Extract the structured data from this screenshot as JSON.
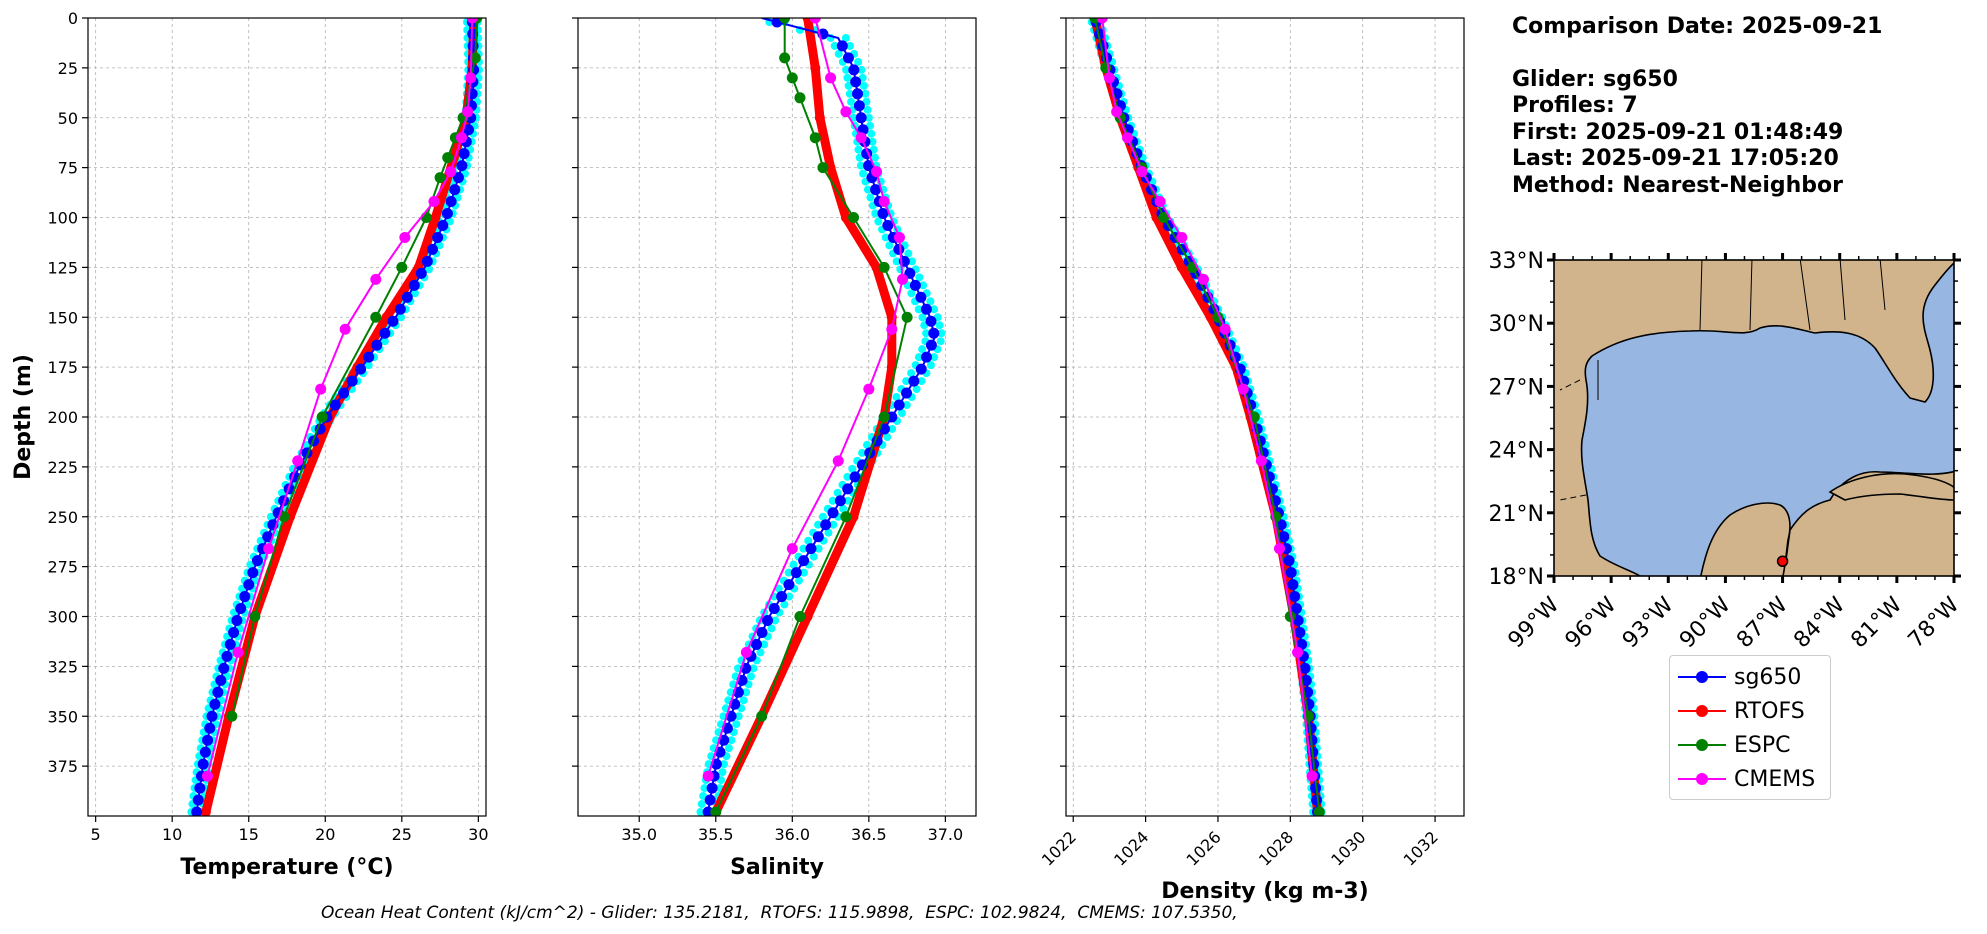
{
  "info": {
    "comparison_date": "Comparison Date: 2025-09-21",
    "glider": "Glider: sg650",
    "profiles": "Profiles: 7",
    "first": "First: 2025-09-21 01:48:49",
    "last": "Last: 2025-09-21 17:05:20",
    "method": "Method: Nearest-Neighbor"
  },
  "footer": "Ocean Heat Content (kJ/cm^2) - Glider: 135.2181,  RTOFS: 115.9898,  ESPC: 102.9824,  CMEMS: 107.5350,",
  "colors": {
    "sg650": "#0000ff",
    "RTOFS": "#ff0000",
    "ESPC": "#008000",
    "CMEMS": "#ff00ff",
    "glider_scatter": "#00ffff",
    "land": "#d2b48c",
    "ocean": "#97b6e1"
  },
  "legend": [
    {
      "name": "sg650",
      "color": "#0000ff"
    },
    {
      "name": "RTOFS",
      "color": "#ff0000"
    },
    {
      "name": "ESPC",
      "color": "#008000"
    },
    {
      "name": "CMEMS",
      "color": "#ff00ff"
    }
  ],
  "chart_data": [
    {
      "type": "line",
      "xlabel": "Temperature (°C)",
      "ylabel": "Depth (m)",
      "xlim": [
        4.5,
        30.5
      ],
      "ylim": [
        400,
        0
      ],
      "xticks": [
        5,
        10,
        15,
        20,
        25,
        30
      ],
      "yticks": [
        0,
        25,
        50,
        75,
        100,
        125,
        150,
        175,
        200,
        225,
        250,
        275,
        300,
        325,
        350,
        375
      ],
      "grid": true,
      "series": [
        {
          "name": "sg650",
          "depth": [
            0,
            25,
            50,
            75,
            100,
            125,
            150,
            175,
            200,
            225,
            250,
            275,
            300,
            325,
            350,
            375,
            398
          ],
          "values": [
            29.6,
            29.7,
            29.5,
            28.9,
            27.9,
            26.5,
            24.6,
            22.4,
            20.1,
            18.3,
            16.8,
            15.4,
            14.3,
            13.4,
            12.6,
            12.0,
            11.6
          ]
        },
        {
          "name": "RTOFS",
          "depth": [
            0,
            25,
            50,
            70,
            100,
            125,
            150,
            175,
            200,
            250,
            300,
            350,
            398
          ],
          "values": [
            29.7,
            29.6,
            29.2,
            28.4,
            27.2,
            26.1,
            24.0,
            22.1,
            20.3,
            17.7,
            15.4,
            13.7,
            12.2
          ]
        },
        {
          "name": "ESPC",
          "depth": [
            0,
            20,
            50,
            60,
            70,
            80,
            100,
            125,
            150,
            200,
            250,
            300,
            350
          ],
          "values": [
            29.9,
            29.8,
            29.0,
            28.5,
            28.0,
            27.5,
            26.6,
            25.0,
            23.3,
            19.8,
            17.3,
            15.4,
            13.9
          ]
        },
        {
          "name": "CMEMS",
          "depth": [
            0,
            30,
            47,
            60,
            77,
            92,
            110,
            131,
            156,
            186,
            222,
            266,
            318,
            380
          ],
          "values": [
            29.6,
            29.5,
            29.3,
            28.9,
            28.2,
            27.1,
            25.2,
            23.3,
            21.3,
            19.7,
            18.2,
            16.3,
            14.3,
            12.3
          ]
        }
      ]
    },
    {
      "type": "line",
      "xlabel": "Salinity",
      "xlim": [
        34.6,
        37.2
      ],
      "ylim": [
        400,
        0
      ],
      "xticks": [
        35.0,
        35.5,
        36.0,
        36.5,
        37.0
      ],
      "grid": true,
      "series": [
        {
          "name": "sg650",
          "depth": [
            0,
            10,
            25,
            50,
            75,
            100,
            125,
            150,
            160,
            175,
            200,
            225,
            250,
            275,
            300,
            325,
            350,
            375,
            398
          ],
          "values": [
            35.8,
            36.3,
            36.4,
            36.45,
            36.5,
            36.6,
            36.75,
            36.9,
            36.93,
            36.85,
            36.65,
            36.45,
            36.25,
            36.05,
            35.85,
            35.7,
            35.6,
            35.5,
            35.45
          ]
        },
        {
          "name": "RTOFS",
          "depth": [
            0,
            25,
            50,
            75,
            100,
            125,
            150,
            175,
            200,
            250,
            300,
            350,
            398
          ],
          "values": [
            36.1,
            36.15,
            36.18,
            36.25,
            36.35,
            36.55,
            36.65,
            36.65,
            36.6,
            36.4,
            36.1,
            35.8,
            35.5
          ]
        },
        {
          "name": "ESPC",
          "depth": [
            0,
            20,
            30,
            40,
            60,
            75,
            100,
            125,
            150,
            200,
            250,
            300,
            350,
            398
          ],
          "values": [
            35.95,
            35.95,
            36.0,
            36.05,
            36.15,
            36.2,
            36.4,
            36.6,
            36.75,
            36.6,
            36.35,
            36.05,
            35.8,
            35.5
          ]
        },
        {
          "name": "CMEMS",
          "depth": [
            0,
            30,
            47,
            60,
            77,
            92,
            110,
            131,
            156,
            186,
            222,
            266,
            318,
            380
          ],
          "values": [
            36.15,
            36.25,
            36.35,
            36.45,
            36.55,
            36.6,
            36.7,
            36.72,
            36.65,
            36.5,
            36.3,
            36.0,
            35.7,
            35.45
          ]
        }
      ]
    },
    {
      "type": "line",
      "xlabel": "Density (kg m-3)",
      "xlim": [
        1021.8,
        1032.8
      ],
      "ylim": [
        400,
        0
      ],
      "xticks": [
        1022,
        1024,
        1026,
        1028,
        1030,
        1032
      ],
      "grid": true,
      "series": [
        {
          "name": "sg650",
          "depth": [
            0,
            25,
            50,
            75,
            100,
            125,
            150,
            175,
            200,
            225,
            250,
            275,
            300,
            325,
            350,
            375,
            398
          ],
          "values": [
            1022.6,
            1023.0,
            1023.4,
            1023.9,
            1024.5,
            1025.3,
            1026.0,
            1026.6,
            1027.0,
            1027.35,
            1027.7,
            1028.0,
            1028.2,
            1028.4,
            1028.55,
            1028.65,
            1028.75
          ]
        },
        {
          "name": "RTOFS",
          "depth": [
            0,
            25,
            50,
            75,
            100,
            125,
            150,
            175,
            200,
            250,
            300,
            350,
            398
          ],
          "values": [
            1022.6,
            1022.9,
            1023.3,
            1023.8,
            1024.3,
            1025.0,
            1025.8,
            1026.5,
            1026.9,
            1027.6,
            1028.1,
            1028.5,
            1028.75
          ]
        },
        {
          "name": "ESPC",
          "depth": [
            0,
            25,
            50,
            75,
            100,
            125,
            150,
            200,
            250,
            300,
            350,
            398
          ],
          "values": [
            1022.6,
            1022.9,
            1023.3,
            1023.9,
            1024.5,
            1025.3,
            1026.0,
            1027.0,
            1027.6,
            1028.0,
            1028.5,
            1028.8
          ]
        },
        {
          "name": "CMEMS",
          "depth": [
            0,
            30,
            47,
            60,
            77,
            92,
            110,
            131,
            156,
            186,
            222,
            266,
            318,
            380
          ],
          "values": [
            1022.8,
            1023.0,
            1023.2,
            1023.5,
            1023.9,
            1024.4,
            1025.0,
            1025.6,
            1026.2,
            1026.7,
            1027.2,
            1027.7,
            1028.2,
            1028.6
          ]
        }
      ]
    },
    {
      "type": "map",
      "xticks": [
        "99°W",
        "96°W",
        "93°W",
        "90°W",
        "87°W",
        "84°W",
        "81°W",
        "78°W"
      ],
      "yticks": [
        "18°N",
        "21°N",
        "24°N",
        "27°N",
        "30°N",
        "33°N"
      ],
      "lon_range": [
        -99,
        -78
      ],
      "lat_range": [
        18,
        33
      ],
      "glider_position": {
        "lon": -87.0,
        "lat": 18.7
      }
    }
  ]
}
